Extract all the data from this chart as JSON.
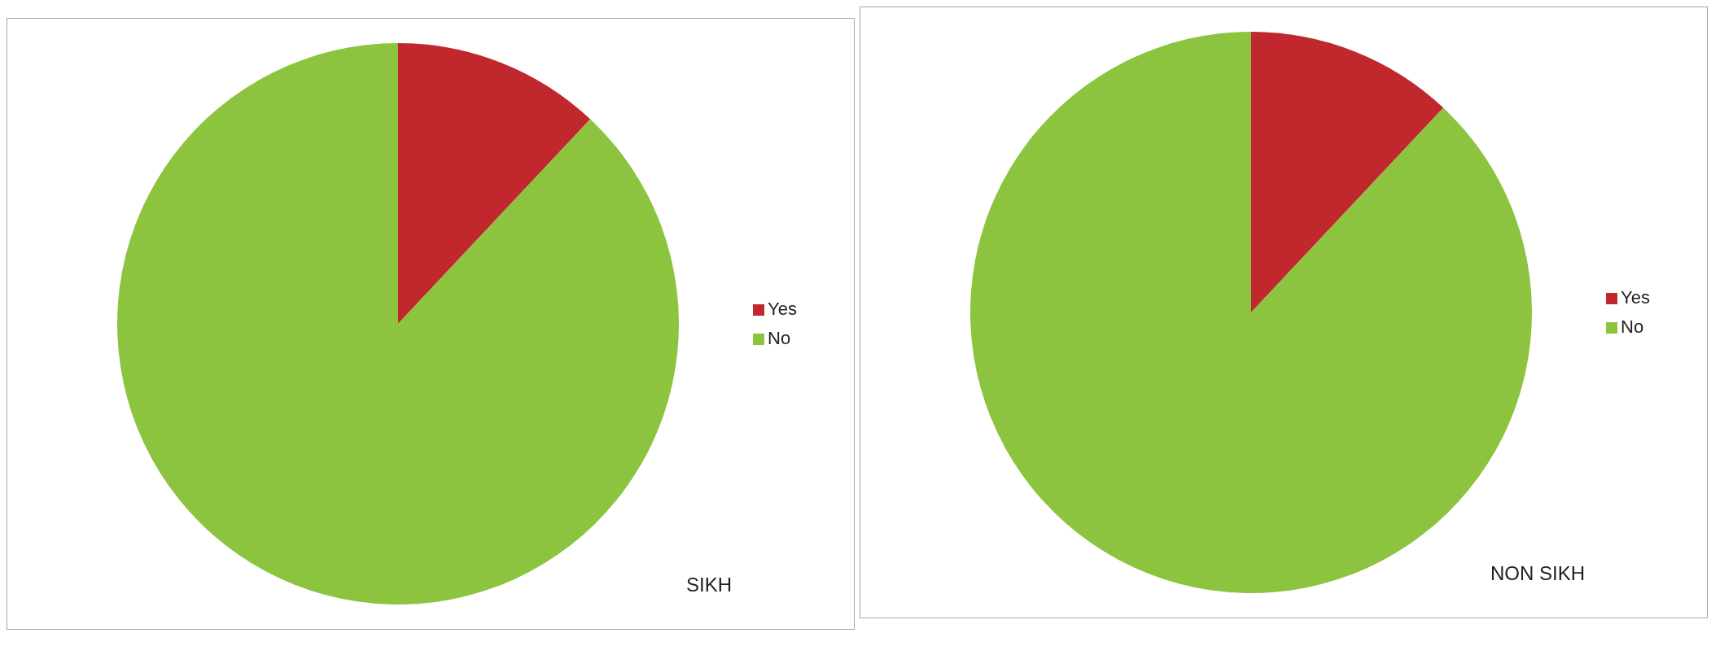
{
  "chart_data": [
    {
      "type": "pie",
      "title": "SIKH",
      "categories": [
        "Yes",
        "No"
      ],
      "values": [
        12,
        88
      ],
      "colors": [
        "#c0282d",
        "#8cc43f"
      ],
      "legend": "right"
    },
    {
      "type": "pie",
      "title": "NON SIKH",
      "categories": [
        "Yes",
        "No"
      ],
      "values": [
        12,
        88
      ],
      "colors": [
        "#c0282d",
        "#8cc43f"
      ],
      "legend": "right"
    }
  ]
}
